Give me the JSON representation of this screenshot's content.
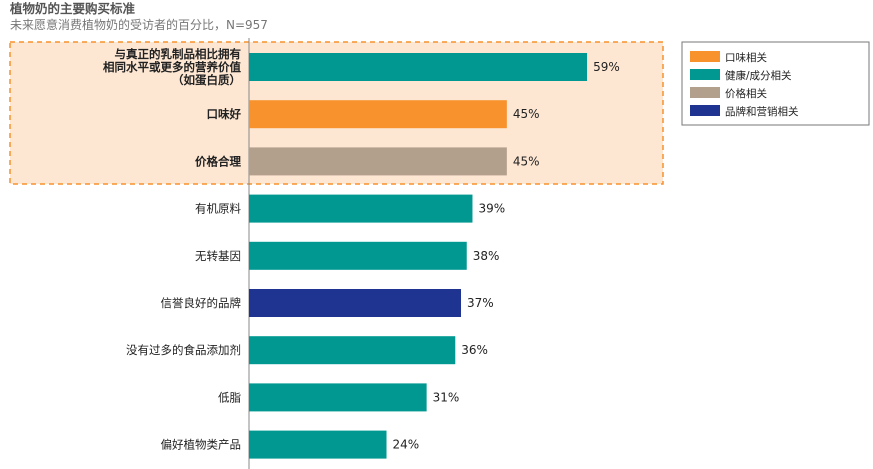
{
  "chart_data": {
    "type": "bar",
    "orientation": "horizontal",
    "title": "植物奶的主要购买标准",
    "subtitle": "未来愿意消费植物奶的受访者的百分比，N=957",
    "unit": "%",
    "categories": [
      [
        "与真正的乳制品相比拥有",
        "相同水平或更多的营养价值",
        "（如蛋白质）"
      ],
      [
        "口味好"
      ],
      [
        "价格合理"
      ],
      [
        "有机原料"
      ],
      [
        "无转基因"
      ],
      [
        "信誉良好的品牌"
      ],
      [
        "没有过多的食品添加剂"
      ],
      [
        "低脂"
      ],
      [
        "偏好植物类产品"
      ]
    ],
    "values": [
      59,
      45,
      45,
      39,
      38,
      37,
      36,
      31,
      24
    ],
    "value_labels": [
      "59%",
      "45%",
      "45%",
      "39%",
      "38%",
      "37%",
      "36%",
      "31%",
      "24%"
    ],
    "groups": [
      "health",
      "taste",
      "price",
      "health",
      "health",
      "brand",
      "health",
      "health",
      "health"
    ],
    "highlighted_categories": [
      0,
      1,
      2
    ],
    "legend": [
      {
        "key": "taste",
        "label": "口味相关",
        "color": "#F7922D"
      },
      {
        "key": "health",
        "label": "健康/成分相关",
        "color": "#009891"
      },
      {
        "key": "price",
        "label": "价格相关",
        "color": "#B3A08C"
      },
      {
        "key": "brand",
        "label": "品牌和营销相关",
        "color": "#1F3490"
      }
    ],
    "legend_position": "top-right",
    "grid": false,
    "xlim": [
      0,
      100
    ]
  },
  "colors": {
    "highlight_fill": "#FDE7D3",
    "highlight_border": "#F7922D",
    "axis": "#888888"
  }
}
